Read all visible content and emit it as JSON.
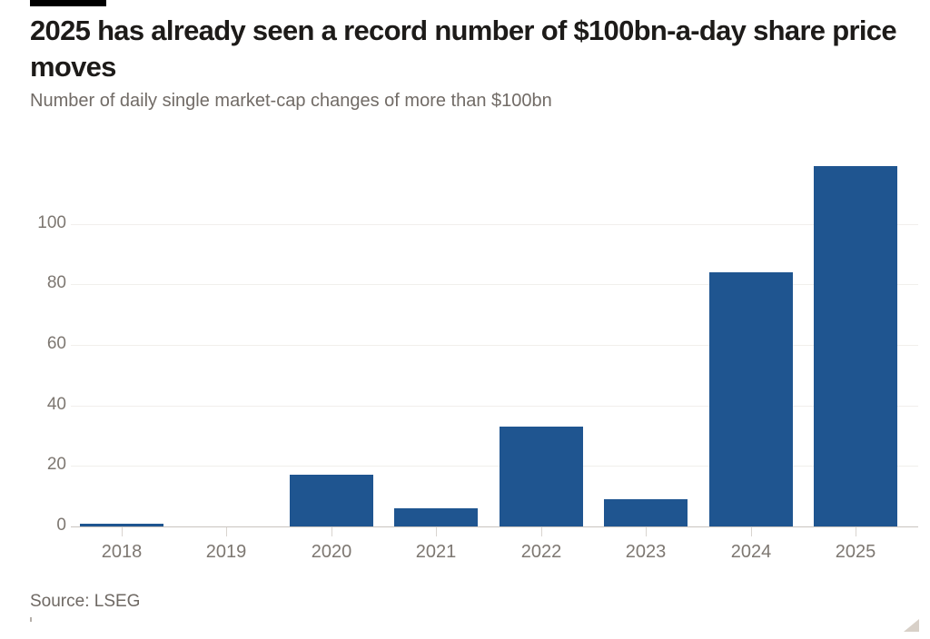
{
  "page": {
    "title_lines": [
      "2025 has already seen a record number of $100bn-a-day share price",
      "moves"
    ],
    "subtitle": "Number of daily single market-cap changes of more than $100bn",
    "source": "Source: LSEG"
  },
  "chart_data": {
    "type": "bar",
    "title": "2025 has already seen a record number of $100bn-a-day share price moves",
    "subtitle": "Number of daily single market-cap changes of more than $100bn",
    "source": "Source: LSEG",
    "categories": [
      "2018",
      "2019",
      "2020",
      "2021",
      "2022",
      "2023",
      "2024",
      "2025"
    ],
    "values": [
      1,
      0,
      17,
      6,
      33,
      9,
      84,
      119
    ],
    "xlabel": "",
    "ylabel": "",
    "yticks": [
      0,
      20,
      40,
      60,
      80,
      100
    ],
    "ylim": [
      0,
      120
    ],
    "grid": true,
    "legend": false,
    "bar_color": "#1f5590",
    "accent_colors": {
      "bar": "#1f5590",
      "flag_bar": "#000000",
      "corner_triangle": "#d8d0c8"
    }
  }
}
